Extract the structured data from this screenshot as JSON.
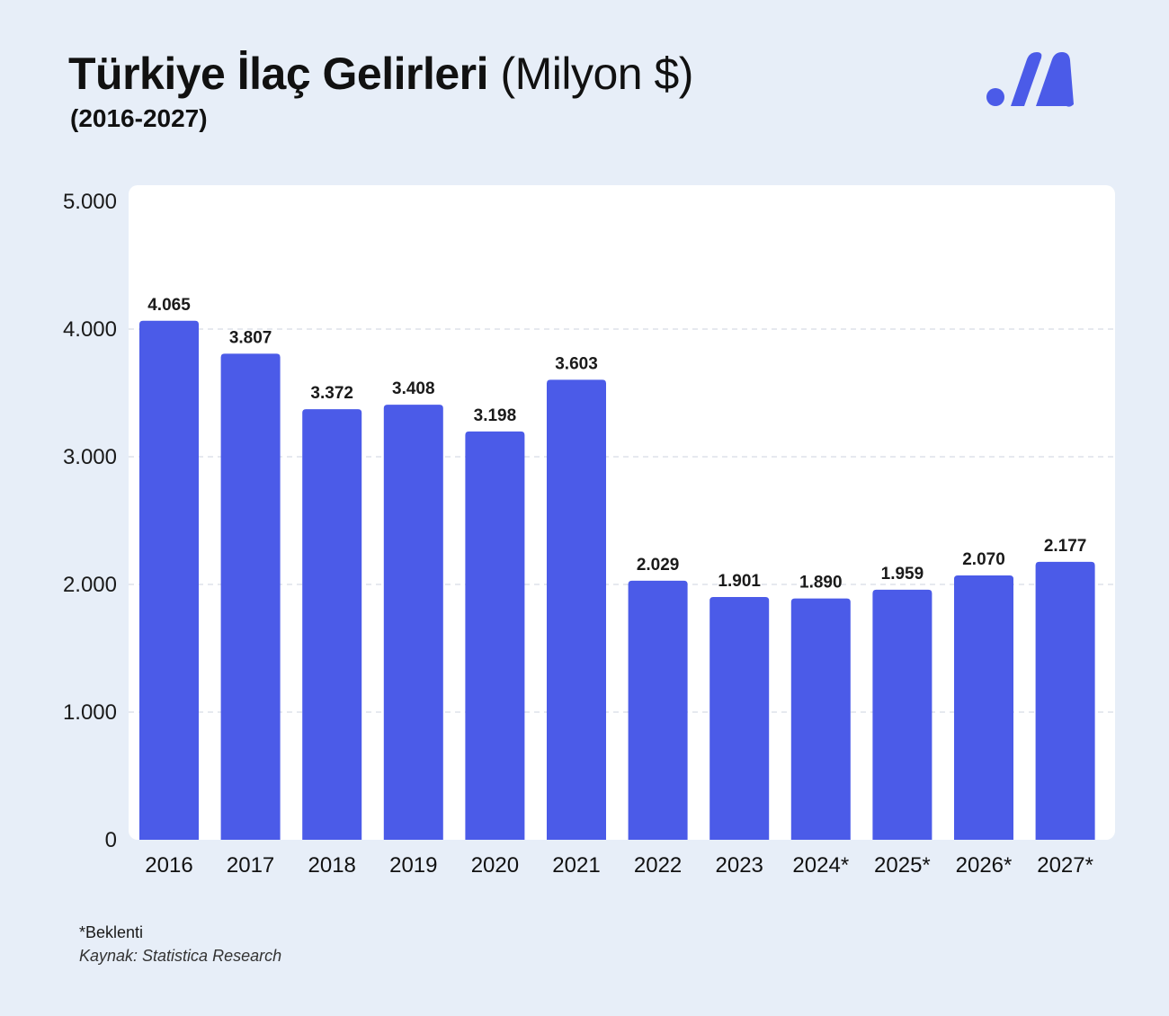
{
  "header": {
    "title": "Türkiye İlaç Gelirleri",
    "unit": "(Milyon $)",
    "subtitle": "(2016-2027)"
  },
  "logo": {
    "icon": "brand-logo-icon",
    "color": "#4b5be8"
  },
  "footer": {
    "note": "*Beklenti",
    "source": "Kaynak: Statistica Research"
  },
  "colors": {
    "background": "#e7eef8",
    "panel": "#ffffff",
    "bar": "#4b5be8",
    "grid": "#dde2ea",
    "text": "#111111"
  },
  "chart_data": {
    "type": "bar",
    "title": "Türkiye İlaç Gelirleri (Milyon $)",
    "subtitle": "(2016-2027)",
    "xlabel": "",
    "ylabel": "",
    "categories": [
      "2016",
      "2017",
      "2018",
      "2019",
      "2020",
      "2021",
      "2022",
      "2023",
      "2024*",
      "2025*",
      "2026*",
      "2027*"
    ],
    "values": [
      4065,
      3807,
      3372,
      3408,
      3198,
      3603,
      2029,
      1901,
      1890,
      1959,
      2070,
      2177
    ],
    "value_labels": [
      "4.065",
      "3.807",
      "3.372",
      "3.408",
      "3.198",
      "3.603",
      "2.029",
      "1.901",
      "1.890",
      "1.959",
      "2.070",
      "2.177"
    ],
    "yticks": [
      0,
      1000,
      2000,
      3000,
      4000,
      5000
    ],
    "ytick_labels": [
      "0",
      "1.000",
      "2.000",
      "3.000",
      "4.000",
      "5.000"
    ],
    "ylim": [
      0,
      5000
    ],
    "grid": true,
    "legend": "none"
  }
}
